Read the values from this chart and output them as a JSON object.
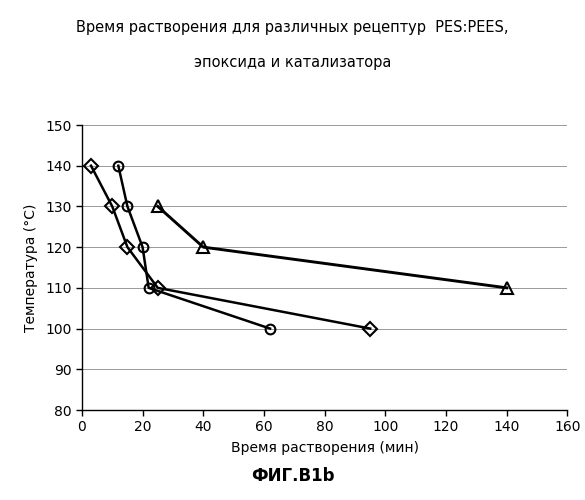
{
  "title_line1": "Время растворения для различных рецептур  PES:PEES,",
  "title_line2": "эпоксида и катализатора",
  "xlabel": "Время растворения (мин)",
  "ylabel": "Температура (°С)",
  "caption": "ФИГ.В1b",
  "xlim": [
    0,
    160
  ],
  "ylim": [
    80,
    150
  ],
  "xticks": [
    0,
    20,
    40,
    60,
    80,
    100,
    120,
    140,
    160
  ],
  "yticks": [
    80,
    90,
    100,
    110,
    120,
    130,
    140,
    150
  ],
  "series_diamond": {
    "x": [
      3,
      10,
      15,
      25,
      95
    ],
    "y": [
      140,
      130,
      120,
      110,
      100
    ]
  },
  "series_circle": {
    "x": [
      12,
      15,
      20,
      22,
      62
    ],
    "y": [
      140,
      130,
      120,
      110,
      100
    ]
  },
  "series_triangle": {
    "x": [
      25,
      40,
      140
    ],
    "y": [
      130,
      120,
      110
    ]
  },
  "background_color": "#ffffff",
  "grid_color": "#999999",
  "title_fontsize": 10.5,
  "axis_label_fontsize": 10,
  "tick_fontsize": 10,
  "caption_fontsize": 12,
  "linewidth": 1.8,
  "markersize": 7
}
